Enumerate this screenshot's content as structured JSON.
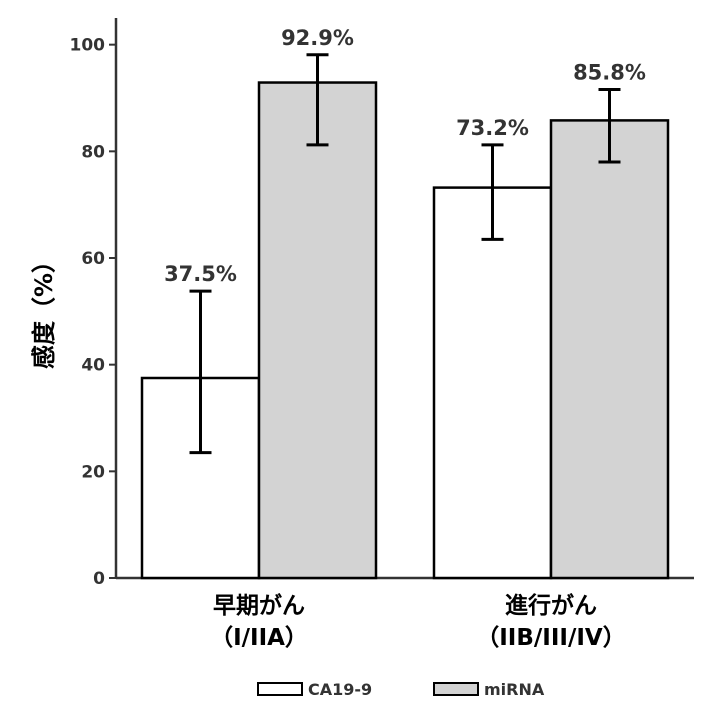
{
  "chart_data": {
    "type": "bar",
    "ylabel": "感度（%）",
    "ylim": [
      0,
      105
    ],
    "yticks": [
      0,
      20,
      40,
      60,
      80,
      100
    ],
    "grid": false,
    "legend_position": "bottom",
    "categories": [
      [
        "早期がん",
        "（I/IIA）"
      ],
      [
        "進行がん",
        "（IIB/III/IV）"
      ]
    ],
    "series": [
      {
        "name": "CA19-9",
        "color": "#ffffff",
        "values": [
          37.5,
          73.2
        ],
        "error_low": [
          23.5,
          63.5
        ],
        "error_high": [
          53.8,
          81.2
        ],
        "labels": [
          "37.5%",
          "73.2%"
        ]
      },
      {
        "name": "miRNA",
        "color": "#d3d3d3",
        "values": [
          92.9,
          85.8
        ],
        "error_low": [
          81.2,
          78.0
        ],
        "error_high": [
          98.1,
          91.6
        ],
        "labels": [
          "92.9%",
          "85.8%"
        ]
      }
    ]
  }
}
